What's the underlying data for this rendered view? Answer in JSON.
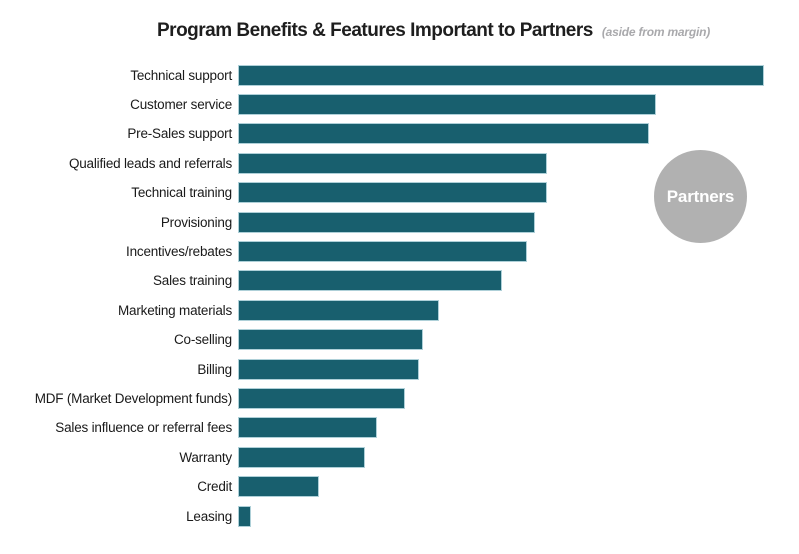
{
  "header": {
    "title": "Program Benefits & Features Important to Partners",
    "subtitle": "(aside from margin)"
  },
  "badge": {
    "label": "Partners"
  },
  "colors": {
    "bar": "#185F6E",
    "bar_border": "#AED0D8",
    "circle": "#B1B1B1",
    "title_text": "#1E1E1E",
    "subtitle_text": "#A9A9AC",
    "label_text": "#1A1A1A",
    "background": "#FFFFFF"
  },
  "chart_data": {
    "type": "bar",
    "orientation": "horizontal",
    "title": "Program Benefits & Features Important to Partners",
    "subtitle": "(aside from margin)",
    "categories": [
      "Technical support",
      "Customer service",
      "Pre-Sales support",
      "Qualified leads and referrals",
      "Technical training",
      "Provisioning",
      "Incentives/rebates",
      "Sales training",
      "Marketing materials",
      "Co-selling",
      "Billing",
      "MDF (Market Development funds)",
      "Sales influence or referral fees",
      "Warranty",
      "Credit",
      "Leasing"
    ],
    "values": [
      100,
      79.5,
      78.1,
      58.7,
      58.7,
      56.5,
      54.9,
      50.2,
      38.2,
      35.2,
      34.4,
      31.7,
      26.4,
      24.1,
      15.4,
      2.5
    ],
    "value_basis": "relative bar length, % of longest bar (chart displays no numeric axis)",
    "xlim": [
      0,
      100
    ],
    "xlabel": "",
    "ylabel": "",
    "grid": false,
    "legend": false,
    "annotation": "Partners"
  }
}
